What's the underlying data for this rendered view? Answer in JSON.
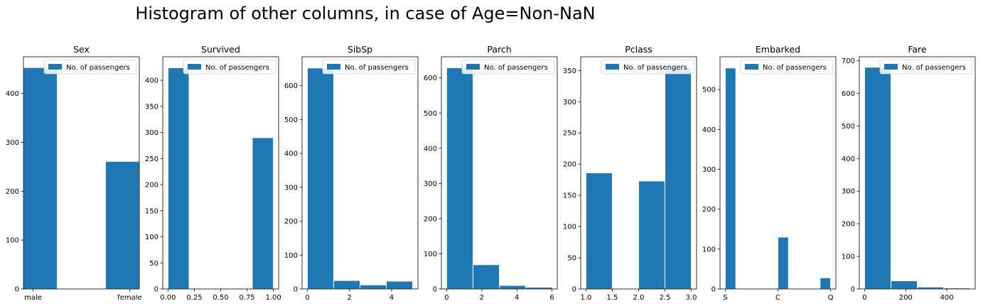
{
  "figure": {
    "title": "Histogram of other columns, in case of Age=Non-NaN",
    "bar_color": "#1f77b4",
    "legend_label": "No. of passengers"
  },
  "chart_data": [
    {
      "type": "bar",
      "title": "Sex",
      "legend": "upper-right",
      "xlim": [
        -0.1,
        1.1
      ],
      "ylim": [
        0,
        475
      ],
      "xticks": [
        {
          "v": 0,
          "label": "male"
        },
        {
          "v": 1,
          "label": "female"
        }
      ],
      "yticks": [
        0,
        100,
        200,
        300,
        400
      ],
      "bins": [
        {
          "x0": -0.1,
          "x1": 0.25,
          "value": 453
        },
        {
          "x0": 0.75,
          "x1": 1.1,
          "value": 261
        }
      ]
    },
    {
      "type": "bar",
      "title": "Survived",
      "legend": "upper-right",
      "xlim": [
        -0.05,
        1.05
      ],
      "ylim": [
        0,
        445
      ],
      "xticks": [
        {
          "v": 0,
          "label": "0.00"
        },
        {
          "v": 0.25,
          "label": "0.25"
        },
        {
          "v": 0.5,
          "label": "0.50"
        },
        {
          "v": 0.75,
          "label": "0.75"
        },
        {
          "v": 1,
          "label": "1.00"
        }
      ],
      "yticks": [
        0,
        50,
        100,
        150,
        200,
        250,
        300,
        350,
        400
      ],
      "bins": [
        {
          "x0": 0,
          "x1": 0.2,
          "value": 424
        },
        {
          "x0": 0.2,
          "x1": 0.4,
          "value": 0
        },
        {
          "x0": 0.4,
          "x1": 0.6,
          "value": 0
        },
        {
          "x0": 0.6,
          "x1": 0.8,
          "value": 0
        },
        {
          "x0": 0.8,
          "x1": 1.0,
          "value": 290
        }
      ]
    },
    {
      "type": "bar",
      "title": "SibSp",
      "legend": "upper-right",
      "xlim": [
        -0.25,
        5.25
      ],
      "ylim": [
        0,
        685
      ],
      "xticks": [
        {
          "v": 0,
          "label": "0"
        },
        {
          "v": 2,
          "label": "2"
        },
        {
          "v": 4,
          "label": "4"
        }
      ],
      "yticks": [
        0,
        100,
        200,
        300,
        400,
        500,
        600
      ],
      "bins": [
        {
          "x0": 0,
          "x1": 1.25,
          "value": 652
        },
        {
          "x0": 1.25,
          "x1": 2.5,
          "value": 25
        },
        {
          "x0": 2.5,
          "x1": 3.75,
          "value": 12
        },
        {
          "x0": 3.75,
          "x1": 5.0,
          "value": 23
        }
      ]
    },
    {
      "type": "bar",
      "title": "Parch",
      "legend": "upper-right",
      "xlim": [
        -0.3,
        6.3
      ],
      "ylim": [
        0,
        660
      ],
      "xticks": [
        {
          "v": 0,
          "label": "0"
        },
        {
          "v": 2,
          "label": "2"
        },
        {
          "v": 4,
          "label": "4"
        },
        {
          "v": 6,
          "label": "6"
        }
      ],
      "yticks": [
        0,
        100,
        200,
        300,
        400,
        500,
        600
      ],
      "bins": [
        {
          "x0": 0,
          "x1": 1.5,
          "value": 629
        },
        {
          "x0": 1.5,
          "x1": 3.0,
          "value": 69
        },
        {
          "x0": 3.0,
          "x1": 4.5,
          "value": 10
        },
        {
          "x0": 4.5,
          "x1": 6.0,
          "value": 5
        }
      ]
    },
    {
      "type": "bar",
      "title": "Pclass",
      "legend": "upper-right",
      "xlim": [
        0.9,
        3.1
      ],
      "ylim": [
        0,
        372
      ],
      "xticks": [
        {
          "v": 1.0,
          "label": "1.0"
        },
        {
          "v": 1.5,
          "label": "1.5"
        },
        {
          "v": 2.0,
          "label": "2.0"
        },
        {
          "v": 2.5,
          "label": "2.5"
        },
        {
          "v": 3.0,
          "label": "3.0"
        }
      ],
      "yticks": [
        0,
        50,
        100,
        150,
        200,
        250,
        300,
        350
      ],
      "bins": [
        {
          "x0": 1.0,
          "x1": 1.5,
          "value": 186
        },
        {
          "x0": 1.5,
          "x1": 2.0,
          "value": 0
        },
        {
          "x0": 2.0,
          "x1": 2.5,
          "value": 173
        },
        {
          "x0": 2.5,
          "x1": 3.0,
          "value": 355
        }
      ]
    },
    {
      "type": "bar",
      "title": "Embarked",
      "legend": "upper-right",
      "xlim": [
        -0.1,
        2.1
      ],
      "ylim": [
        0,
        582
      ],
      "xticks": [
        {
          "v": 0,
          "label": "S"
        },
        {
          "v": 1,
          "label": "C"
        },
        {
          "v": 2,
          "label": "Q"
        }
      ],
      "yticks": [
        0,
        100,
        200,
        300,
        400,
        500
      ],
      "bins": [
        {
          "x0": 0,
          "x1": 0.2,
          "value": 554
        },
        {
          "x0": 0.2,
          "x1": 0.4,
          "value": 0
        },
        {
          "x0": 0.4,
          "x1": 0.6,
          "value": 0
        },
        {
          "x0": 0.6,
          "x1": 0.8,
          "value": 0
        },
        {
          "x0": 0.8,
          "x1": 1.0,
          "value": 0
        },
        {
          "x0": 1.0,
          "x1": 1.2,
          "value": 130
        },
        {
          "x0": 1.2,
          "x1": 1.4,
          "value": 0
        },
        {
          "x0": 1.4,
          "x1": 1.6,
          "value": 0
        },
        {
          "x0": 1.6,
          "x1": 1.8,
          "value": 0
        },
        {
          "x0": 1.8,
          "x1": 2.0,
          "value": 28
        }
      ]
    },
    {
      "type": "bar",
      "title": "Fare",
      "legend": "upper-right",
      "xlim": [
        -25.6,
        537.9
      ],
      "ylim": [
        0,
        712
      ],
      "xticks": [
        {
          "v": 0,
          "label": "0"
        },
        {
          "v": 200,
          "label": "200"
        },
        {
          "v": 400,
          "label": "400"
        }
      ],
      "yticks": [
        0,
        100,
        200,
        300,
        400,
        500,
        600,
        700
      ],
      "bins": [
        {
          "x0": 0,
          "x1": 128.08,
          "value": 680
        },
        {
          "x0": 128.08,
          "x1": 256.16,
          "value": 25
        },
        {
          "x0": 256.16,
          "x1": 384.25,
          "value": 6
        },
        {
          "x0": 384.25,
          "x1": 512.33,
          "value": 3
        }
      ]
    }
  ]
}
